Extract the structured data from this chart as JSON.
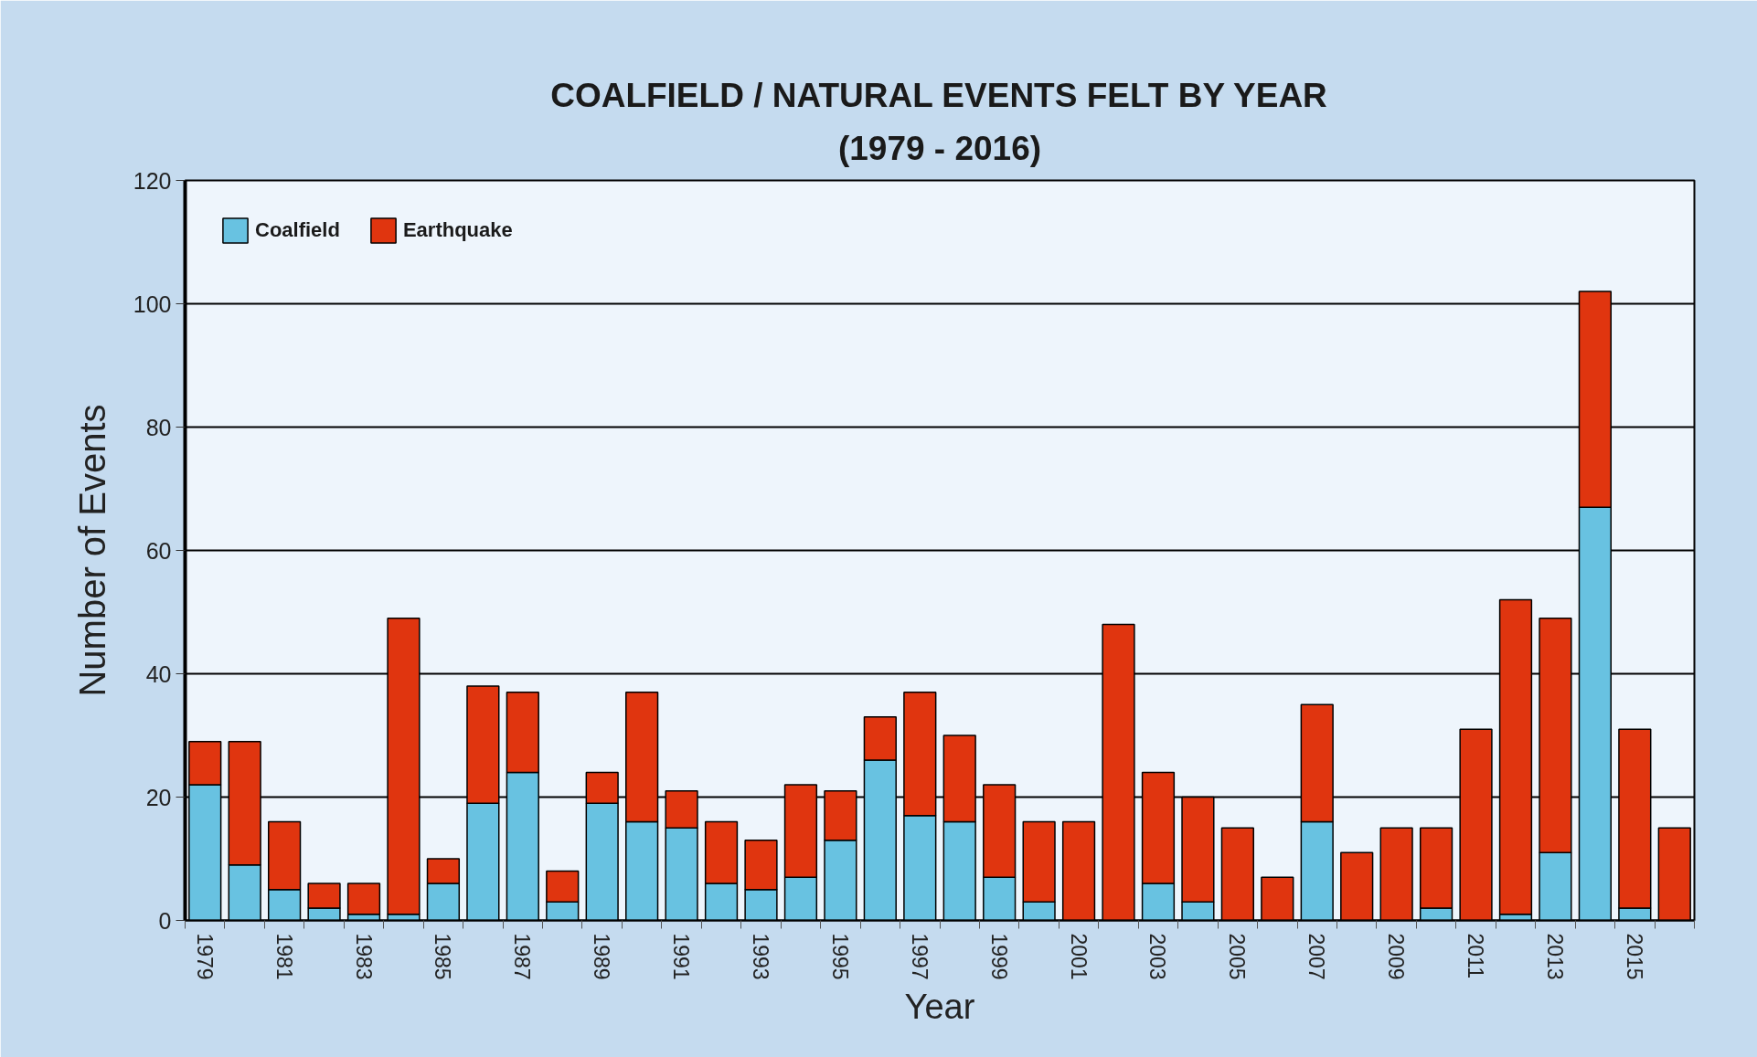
{
  "chart_data": {
    "type": "bar",
    "title": "COALFIELD / NATURAL EVENTS FELT BY YEAR",
    "subtitle": "(1979 - 2016)",
    "xlabel": "Year",
    "ylabel": "Number of Events",
    "categories": [
      "1979",
      null,
      "1981",
      null,
      "1983",
      null,
      "1985",
      null,
      "1987",
      null,
      "1989",
      null,
      "1991",
      null,
      "1993",
      null,
      "1995",
      null,
      "1997",
      null,
      "1999",
      null,
      "2001",
      null,
      "2003",
      null,
      "2005",
      null,
      "2007",
      null,
      "2009",
      null,
      "2011",
      null,
      "2013",
      null,
      "2015",
      null
    ],
    "stacked": true,
    "series": [
      {
        "name": "Coalfield",
        "color": "#68c2e1",
        "values": [
          22,
          9,
          5,
          2,
          1,
          1,
          6,
          19,
          24,
          3,
          19,
          16,
          15,
          6,
          5,
          7,
          13,
          26,
          17,
          16,
          7,
          3,
          0,
          0,
          6,
          3,
          0,
          0,
          16,
          0,
          0,
          2,
          0,
          1,
          11,
          67,
          2,
          0
        ]
      },
      {
        "name": "Earthquake",
        "color": "#e0350f",
        "values": [
          7,
          20,
          11,
          4,
          5,
          48,
          4,
          19,
          13,
          5,
          5,
          21,
          6,
          10,
          8,
          15,
          8,
          7,
          20,
          14,
          15,
          13,
          16,
          48,
          18,
          17,
          15,
          7,
          19,
          11,
          15,
          13,
          31,
          51,
          38,
          35,
          29,
          15
        ]
      }
    ],
    "ylim": [
      0,
      120
    ],
    "yticks": [
      0,
      20,
      40,
      60,
      80,
      100,
      120
    ],
    "grid": "y",
    "legend": "top left"
  }
}
